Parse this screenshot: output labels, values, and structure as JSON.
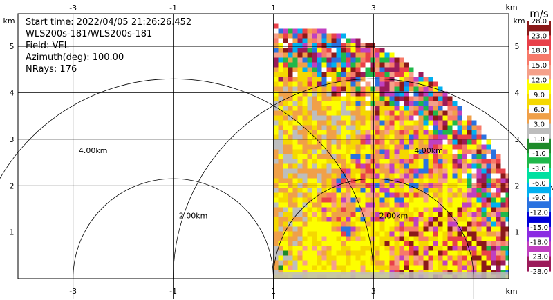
{
  "header": {
    "start_time": "Start time: 2022/04/05 21:26:26.452",
    "instrument": "WLS200s-181/WLS200s-181",
    "field": "Field: VEL",
    "azimuth": "Azimuth(deg): 100.00",
    "nrays": "NRays: 176"
  },
  "chart_data": {
    "type": "heatmap",
    "subtype": "radar-ppi-quadrant",
    "field": "VEL",
    "unit_label": "m/s",
    "x_unit_label": "km",
    "y_unit_label": "km",
    "xlim": [
      -4.1,
      5.7
    ],
    "ylim": [
      0,
      5.7
    ],
    "x_ticks": [
      -3,
      -1,
      1,
      3
    ],
    "y_ticks": [
      1,
      2,
      3,
      4,
      5
    ],
    "grid": true,
    "range_rings": [
      {
        "radius_km": 2.0,
        "label": "2.00km"
      },
      {
        "radius_km": 4.0,
        "label": "4.00km"
      }
    ],
    "ring_centers_km": [
      [
        -1.0,
        0.0
      ],
      [
        3.0,
        0.0
      ]
    ],
    "sector": {
      "x_min_km": 1.0,
      "y_min_km": 0.1,
      "max_range_km": 5.1
    },
    "colorbar_labels": [
      "28.0",
      "23.0",
      "18.0",
      "15.0",
      "12.0",
      "9.0",
      "6.0",
      "3.0",
      "1.0",
      "-1.0",
      "-3.0",
      "-6.0",
      "-9.0",
      "-12.0",
      "-15.0",
      "-18.0",
      "-23.0",
      "-28.0"
    ],
    "colorbar_colors": [
      "#8b1a1a",
      "#e8404a",
      "#f77a6a",
      "#f5a08a",
      "#fdfe00",
      "#f5d800",
      "#f0a048",
      "#bdbdbd",
      "#1e8a2a",
      "#1fb84a",
      "#00e0a0",
      "#00b0f0",
      "#2a72e0",
      "#0000d8",
      "#8a2be2",
      "#c040c0",
      "#9b1b5a"
    ]
  }
}
